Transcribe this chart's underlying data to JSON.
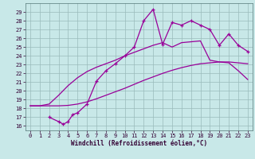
{
  "xlabel": "Windchill (Refroidissement éolien,°C)",
  "xlim": [
    -0.5,
    23.5
  ],
  "ylim": [
    15.5,
    30.0
  ],
  "yticks": [
    16,
    17,
    18,
    19,
    20,
    21,
    22,
    23,
    24,
    25,
    26,
    27,
    28,
    29
  ],
  "xticks": [
    0,
    1,
    2,
    3,
    4,
    5,
    6,
    7,
    8,
    9,
    10,
    11,
    12,
    13,
    14,
    15,
    16,
    17,
    18,
    19,
    20,
    21,
    22,
    23
  ],
  "bg_color": "#c8e8e8",
  "line_color": "#990099",
  "grid_color": "#99bbbb",
  "line1_x": [
    0,
    1,
    2,
    3,
    4,
    5,
    6,
    7,
    8,
    9,
    10,
    11,
    12,
    13,
    14,
    15,
    16,
    17,
    18,
    19,
    20,
    21,
    22,
    23
  ],
  "line1_y": [
    18.3,
    18.3,
    18.3,
    18.3,
    18.35,
    18.5,
    18.75,
    19.1,
    19.5,
    19.9,
    20.3,
    20.75,
    21.2,
    21.6,
    22.0,
    22.35,
    22.65,
    22.9,
    23.1,
    23.2,
    23.3,
    23.3,
    23.2,
    23.1
  ],
  "line2_x": [
    0,
    1,
    2,
    3,
    4,
    5,
    6,
    7,
    8,
    9,
    10,
    11,
    12,
    13,
    14,
    15,
    16,
    17,
    18,
    19,
    20,
    21,
    22,
    23
  ],
  "line2_y": [
    18.3,
    18.3,
    18.5,
    19.5,
    20.6,
    21.5,
    22.2,
    22.7,
    23.1,
    23.5,
    24.0,
    24.4,
    24.8,
    25.2,
    25.5,
    25.0,
    25.5,
    25.6,
    25.7,
    23.5,
    23.3,
    23.2,
    22.3,
    21.3
  ],
  "line3_x": [
    2,
    3,
    3.5,
    4,
    4.5,
    5,
    6,
    7,
    8,
    9,
    10,
    11,
    12,
    13,
    14,
    15,
    16,
    17,
    18,
    19,
    20,
    21,
    22,
    23
  ],
  "line3_y": [
    17.0,
    16.5,
    16.2,
    16.5,
    17.3,
    17.5,
    18.5,
    21.1,
    22.3,
    23.1,
    24.0,
    25.0,
    28.0,
    29.3,
    25.3,
    27.8,
    27.5,
    28.0,
    27.5,
    27.0,
    25.2,
    26.5,
    25.2,
    24.5
  ]
}
